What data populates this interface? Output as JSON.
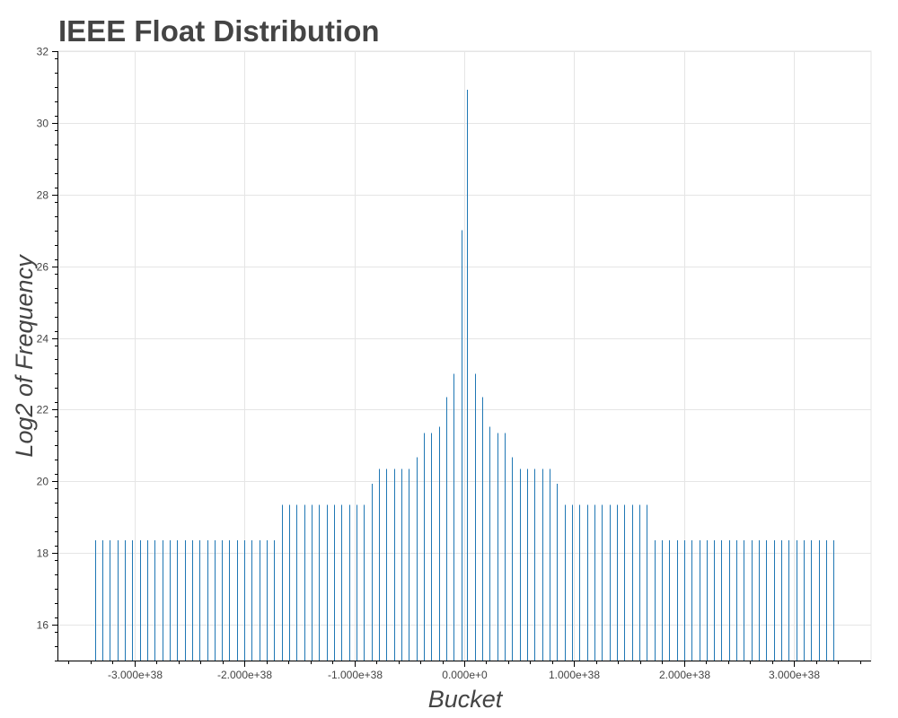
{
  "chart_data": {
    "type": "bar",
    "title": "IEEE Float Distribution",
    "xlabel": "Bucket",
    "ylabel": "Log2 of Frequency",
    "xlim": [
      -3.7e+38,
      3.7e+38
    ],
    "ylim": [
      15,
      32
    ],
    "y_ticks": [
      16,
      18,
      20,
      22,
      24,
      26,
      28,
      30,
      32
    ],
    "x_ticks": [
      -3e+38,
      -2e+38,
      -1e+38,
      0,
      1e+38,
      2e+38,
      3e+38
    ],
    "x_tick_labels": [
      "-3.000e+38",
      "-2.000e+38",
      "-1.000e+38",
      "0.000e+0",
      "1.000e+38",
      "2.000e+38",
      "3.000e+38"
    ],
    "grid": true,
    "bar_color": "#1f77b4",
    "x": [
      -3.36e+38,
      -3.292e+38,
      -3.224e+38,
      -3.156e+38,
      -3.088e+38,
      -3.02e+38,
      -2.952e+38,
      -2.884e+38,
      -2.816e+38,
      -2.748e+38,
      -2.68e+38,
      -2.612e+38,
      -2.544e+38,
      -2.476e+38,
      -2.408e+38,
      -2.34e+38,
      -2.272e+38,
      -2.204e+38,
      -2.136e+38,
      -2.068e+38,
      -2e+38,
      -1.932e+38,
      -1.864e+38,
      -1.796e+38,
      -1.728e+38,
      -1.66e+38,
      -1.592e+38,
      -1.524e+38,
      -1.456e+38,
      -1.388e+38,
      -1.32e+38,
      -1.252e+38,
      -1.184e+38,
      -1.116e+38,
      -1.048e+38,
      -9.8e+37,
      -9.12e+37,
      -8.44e+37,
      -7.76e+37,
      -7.08e+37,
      -6.4e+37,
      -5.72e+37,
      -5.04e+37,
      -4.36e+37,
      -3.68e+37,
      -3e+37,
      -2.32e+37,
      -1.64e+37,
      -9.6e+36,
      -2.8e+36,
      2.8e+36,
      9.6e+36,
      1.64e+37,
      2.32e+37,
      3e+37,
      3.68e+37,
      4.36e+37,
      5.04e+37,
      5.72e+37,
      6.4e+37,
      7.08e+37,
      7.76e+37,
      8.44e+37,
      9.12e+37,
      9.8e+37,
      1.048e+38,
      1.116e+38,
      1.184e+38,
      1.252e+38,
      1.32e+38,
      1.388e+38,
      1.456e+38,
      1.524e+38,
      1.592e+38,
      1.66e+38,
      1.728e+38,
      1.796e+38,
      1.864e+38,
      1.932e+38,
      2e+38,
      2.068e+38,
      2.136e+38,
      2.204e+38,
      2.272e+38,
      2.34e+38,
      2.408e+38,
      2.476e+38,
      2.544e+38,
      2.612e+38,
      2.68e+38,
      2.748e+38,
      2.816e+38,
      2.884e+38,
      2.952e+38,
      3.02e+38,
      3.088e+38,
      3.156e+38,
      3.224e+38,
      3.292e+38,
      3.36e+38
    ],
    "values": [
      18.35,
      18.35,
      18.35,
      18.35,
      18.35,
      18.35,
      18.35,
      18.35,
      18.35,
      18.35,
      18.35,
      18.35,
      18.35,
      18.35,
      18.35,
      18.35,
      18.35,
      18.35,
      18.35,
      18.35,
      18.35,
      18.35,
      18.35,
      18.35,
      18.35,
      19.35,
      19.35,
      19.35,
      19.35,
      19.35,
      19.35,
      19.35,
      19.35,
      19.35,
      19.35,
      19.35,
      19.35,
      19.93,
      20.35,
      20.35,
      20.35,
      20.35,
      20.35,
      20.67,
      21.35,
      21.35,
      21.52,
      22.35,
      23.0,
      27.0,
      30.92,
      23.0,
      22.35,
      21.52,
      21.35,
      21.35,
      20.67,
      20.35,
      20.35,
      20.35,
      20.35,
      20.35,
      19.93,
      19.35,
      19.35,
      19.35,
      19.35,
      19.35,
      19.35,
      19.35,
      19.35,
      19.35,
      19.35,
      19.35,
      19.35,
      18.35,
      18.35,
      18.35,
      18.35,
      18.35,
      18.35,
      18.35,
      18.35,
      18.35,
      18.35,
      18.35,
      18.35,
      18.35,
      18.35,
      18.35,
      18.35,
      18.35,
      18.35,
      18.35,
      18.35,
      18.35,
      18.35,
      18.35,
      18.35,
      18.35
    ]
  }
}
